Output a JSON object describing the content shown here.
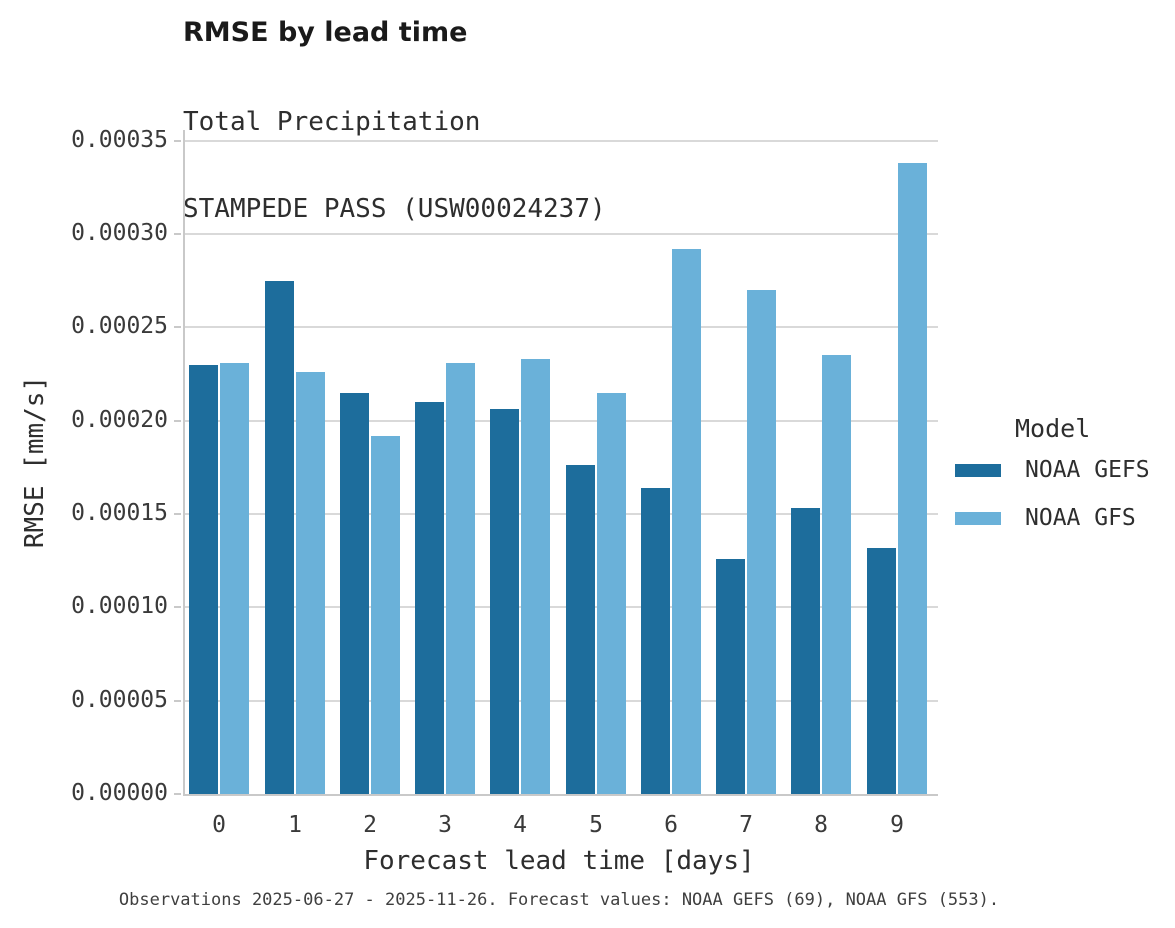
{
  "chart_data": {
    "type": "bar",
    "title": "RMSE by lead time",
    "subtitle": [
      "Total Precipitation",
      "STAMPEDE PASS (USW00024237)"
    ],
    "xlabel": "Forecast lead time [days]",
    "ylabel": "RMSE [mm/s]",
    "categories": [
      "0",
      "1",
      "2",
      "3",
      "4",
      "5",
      "6",
      "7",
      "8",
      "9"
    ],
    "series": [
      {
        "name": "NOAA GEFS",
        "color": "#1d6d9c",
        "values": [
          0.00023,
          0.000275,
          0.000215,
          0.00021,
          0.000206,
          0.000176,
          0.000164,
          0.000126,
          0.000153,
          0.000132
        ]
      },
      {
        "name": "NOAA GFS",
        "color": "#6ab1d9",
        "values": [
          0.000231,
          0.000226,
          0.000192,
          0.000231,
          0.000233,
          0.000215,
          0.000292,
          0.00027,
          0.000235,
          0.000338
        ]
      }
    ],
    "ylim": [
      0,
      0.00035
    ],
    "ytick_values": [
      0.0,
      5e-05,
      0.0001,
      0.00015,
      0.0002,
      0.00025,
      0.0003,
      0.00035
    ],
    "ytick_labels": [
      "0.00000",
      "0.00005",
      "0.00010",
      "0.00015",
      "0.00020",
      "0.00025",
      "0.00030",
      "0.00035"
    ],
    "grid": "horizontal",
    "legend": {
      "title": "Model",
      "position": "right"
    },
    "caption": "Observations 2025-06-27 - 2025-11-26. Forecast values: NOAA GEFS (69), NOAA GFS (553)."
  },
  "colors": {
    "grid": "#d9d9d9",
    "spine": "#c9c9c9",
    "tick_text": "#3a3a3a",
    "title_text": "#1a1a1a",
    "background": "#ffffff"
  }
}
